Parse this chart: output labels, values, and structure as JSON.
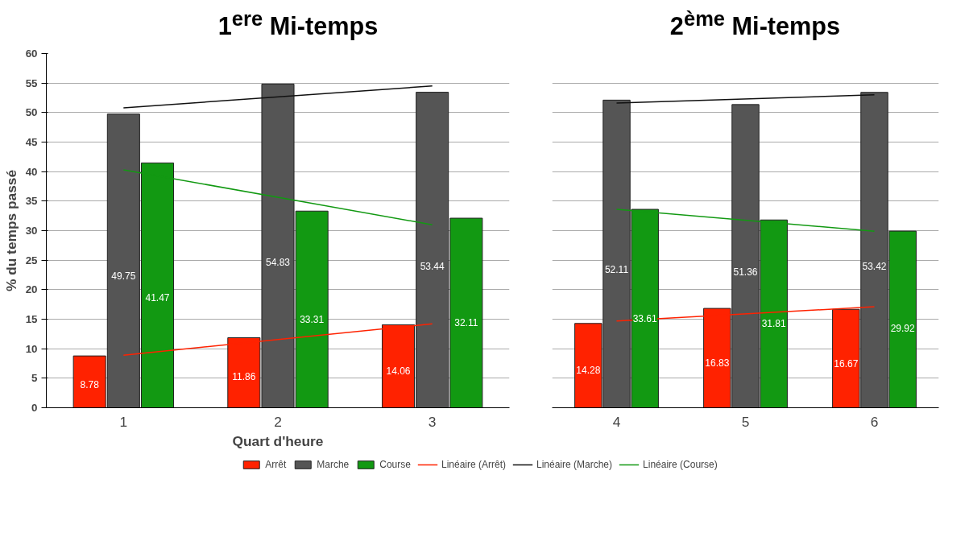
{
  "chart_data": [
    {
      "type": "bar",
      "title": "1$^{ere}$ Mi-temps",
      "ylabel": "% du temps passé",
      "xlabel": "Quart d'heure",
      "categories": [
        "1",
        "2",
        "3"
      ],
      "ylim": [
        0,
        60
      ],
      "yticks": [
        0,
        5,
        10,
        15,
        20,
        25,
        30,
        35,
        40,
        45,
        50,
        55,
        60
      ],
      "grid": "y",
      "legend": "bottom",
      "series": [
        {
          "name": "Arrêt",
          "color": "#ff2200",
          "values": [
            8.78,
            11.86,
            14.06
          ],
          "value_labels": [
            "8.78",
            "11.86",
            "14.06"
          ]
        },
        {
          "name": "Marche",
          "color": "#555555",
          "values": [
            49.75,
            54.83,
            53.44
          ],
          "value_labels": [
            "49.75",
            "54.83",
            "53.44"
          ]
        },
        {
          "name": "Course",
          "color": "#129912",
          "values": [
            41.47,
            33.31,
            32.11
          ],
          "value_labels": [
            "41.47",
            "33.31",
            "32.11"
          ]
        },
        {
          "name": "Linéaire (Arrêt)",
          "type": "line",
          "color": "#ff2200",
          "x": [
            "1",
            "3"
          ],
          "values": [
            8.9,
            14.2
          ]
        },
        {
          "name": "Linéaire (Marche)",
          "type": "line",
          "color": "#111111",
          "x": [
            "1",
            "3"
          ],
          "values": [
            50.8,
            54.5
          ]
        },
        {
          "name": "Linéaire (Course)",
          "type": "line",
          "color": "#129912",
          "x": [
            "1",
            "3"
          ],
          "values": [
            40.3,
            31.0
          ]
        }
      ]
    },
    {
      "type": "bar",
      "title": "2$^{ème}$ Mi-temps",
      "categories": [
        "4",
        "5",
        "6"
      ],
      "ylim": [
        0,
        60
      ],
      "yticks": [
        0,
        5,
        10,
        15,
        20,
        25,
        30,
        35,
        40,
        45,
        50,
        55,
        60
      ],
      "grid": "y",
      "tick_labels": "x",
      "series": [
        {
          "color": "#ff2200",
          "values": [
            14.28,
            16.83,
            16.67
          ],
          "value_labels": [
            "14.28",
            "16.83",
            "16.67"
          ]
        },
        {
          "color": "#555555",
          "values": [
            52.11,
            51.36,
            53.42
          ],
          "value_labels": [
            "52.11",
            "51.36",
            "53.42"
          ]
        },
        {
          "color": "#129912",
          "values": [
            33.61,
            31.81,
            29.92
          ],
          "value_labels": [
            "33.61",
            "31.81",
            "29.92"
          ]
        },
        {
          "type": "line",
          "color": "#ff2200",
          "x": [
            "4",
            "6"
          ],
          "values": [
            14.7,
            17.1
          ]
        },
        {
          "type": "line",
          "color": "#111111",
          "x": [
            "4",
            "6"
          ],
          "values": [
            51.6,
            53.0
          ]
        },
        {
          "type": "line",
          "color": "#129912",
          "x": [
            "4",
            "6"
          ],
          "values": [
            33.6,
            29.9
          ]
        }
      ]
    }
  ]
}
